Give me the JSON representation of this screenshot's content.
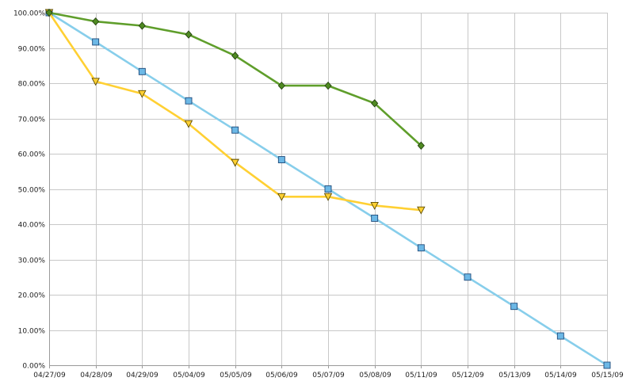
{
  "chart_data": {
    "type": "line",
    "title": "",
    "xlabel": "",
    "ylabel": "",
    "ylim": [
      0,
      100
    ],
    "y_ticks": [
      "0.00%",
      "10.00%",
      "20.00%",
      "30.00%",
      "40.00%",
      "50.00%",
      "60.00%",
      "70.00%",
      "80.00%",
      "90.00%",
      "100.00%"
    ],
    "categories": [
      "04/27/09",
      "04/28/09",
      "04/29/09",
      "05/04/09",
      "05/05/09",
      "05/06/09",
      "05/07/09",
      "05/08/09",
      "05/11/09",
      "05/12/09",
      "05/13/09",
      "05/14/09",
      "05/15/09"
    ],
    "grid": true,
    "legend": "none",
    "series": [
      {
        "color": "#87ceeb",
        "marker": "square",
        "marker_fill": "#6cb8e6",
        "values": [
          100,
          91.7,
          83.3,
          75.0,
          66.7,
          58.3,
          50.0,
          41.7,
          33.3,
          25.0,
          16.7,
          8.3,
          0
        ]
      },
      {
        "color": "#ffd033",
        "marker": "triangle-down",
        "marker_fill": "#ffd033",
        "values": [
          100,
          80.5,
          77.0,
          68.5,
          57.5,
          47.8,
          47.8,
          45.3,
          44.0,
          null,
          null,
          null,
          null
        ]
      },
      {
        "color": "#5f9e2b",
        "marker": "diamond",
        "marker_fill": "#4f8a22",
        "values": [
          100,
          97.5,
          96.3,
          93.8,
          87.8,
          79.3,
          79.3,
          74.3,
          62.3,
          null,
          null,
          null,
          null
        ]
      }
    ]
  }
}
